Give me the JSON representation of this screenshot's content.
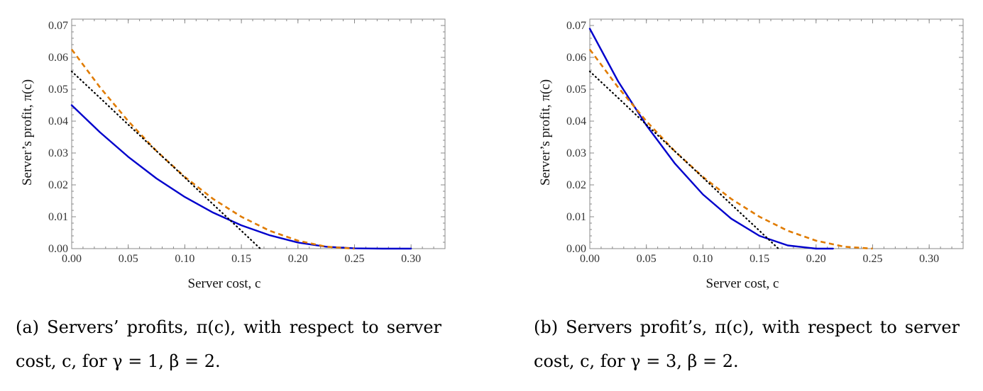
{
  "colors": {
    "solid": "#0000cc",
    "dashed": "#e07b00",
    "dotted": "#000000",
    "frame": "#888888"
  },
  "chart_data": [
    {
      "type": "line",
      "xlabel": "Server cost, c",
      "ylabel": "Server’s profit, π(c)",
      "xlim": [
        0,
        0.33
      ],
      "ylim": [
        0,
        0.072
      ],
      "xticks": [
        "0.00",
        "0.05",
        "0.10",
        "0.15",
        "0.20",
        "0.25",
        "0.30"
      ],
      "yticks": [
        "0.00",
        "0.01",
        "0.02",
        "0.03",
        "0.04",
        "0.05",
        "0.06",
        "0.07"
      ],
      "grid": false,
      "series": [
        {
          "style": "solid",
          "color": "#0000cc",
          "x": [
            0,
            0.025,
            0.05,
            0.075,
            0.1,
            0.125,
            0.15,
            0.175,
            0.2,
            0.225,
            0.25,
            0.275,
            0.3
          ],
          "y": [
            0.045,
            0.0365,
            0.0288,
            0.022,
            0.0162,
            0.0113,
            0.0073,
            0.0042,
            0.0019,
            0.0006,
            0.0001,
            0.0,
            0.0
          ]
        },
        {
          "style": "dashed",
          "color": "#e07b00",
          "x": [
            0,
            0.025,
            0.05,
            0.075,
            0.1,
            0.125,
            0.15,
            0.175,
            0.2,
            0.225,
            0.25
          ],
          "y": [
            0.0625,
            0.0506,
            0.04,
            0.0306,
            0.0225,
            0.0156,
            0.01,
            0.0056,
            0.0025,
            0.0006,
            0.0
          ]
        },
        {
          "style": "dotted",
          "color": "#000000",
          "x": [
            0,
            0.025,
            0.05,
            0.075,
            0.1,
            0.125,
            0.15,
            0.1667
          ],
          "y": [
            0.0556,
            0.0473,
            0.0389,
            0.0306,
            0.0223,
            0.0139,
            0.0056,
            0.0
          ]
        }
      ]
    },
    {
      "type": "line",
      "xlabel": "Server cost, c",
      "ylabel": "Server’s profit, π(c)",
      "xlim": [
        0,
        0.33
      ],
      "ylim": [
        0,
        0.072
      ],
      "xticks": [
        "0.00",
        "0.05",
        "0.10",
        "0.15",
        "0.20",
        "0.25",
        "0.30"
      ],
      "yticks": [
        "0.00",
        "0.01",
        "0.02",
        "0.03",
        "0.04",
        "0.05",
        "0.06",
        "0.07"
      ],
      "grid": false,
      "series": [
        {
          "style": "solid",
          "color": "#0000cc",
          "x": [
            0,
            0.025,
            0.05,
            0.075,
            0.1,
            0.125,
            0.15,
            0.175,
            0.2,
            0.215
          ],
          "y": [
            0.069,
            0.0525,
            0.0387,
            0.0268,
            0.017,
            0.0094,
            0.004,
            0.001,
            0.0,
            0.0
          ]
        },
        {
          "style": "dashed",
          "color": "#e07b00",
          "x": [
            0,
            0.025,
            0.05,
            0.075,
            0.1,
            0.125,
            0.15,
            0.175,
            0.2,
            0.225,
            0.25
          ],
          "y": [
            0.0625,
            0.0506,
            0.04,
            0.0306,
            0.0225,
            0.0156,
            0.01,
            0.0056,
            0.0025,
            0.0006,
            0.0
          ]
        },
        {
          "style": "dotted",
          "color": "#000000",
          "x": [
            0,
            0.025,
            0.05,
            0.075,
            0.1,
            0.125,
            0.15,
            0.1667
          ],
          "y": [
            0.0556,
            0.0473,
            0.0389,
            0.0306,
            0.0223,
            0.0139,
            0.0056,
            0.0
          ]
        }
      ]
    }
  ],
  "captions": [
    "(a) Servers’ profits, π(c), with respect to server cost, c, for γ = 1, β = 2.",
    "(b) Servers profit’s, π(c), with respect to server cost, c, for γ = 3, β = 2."
  ]
}
